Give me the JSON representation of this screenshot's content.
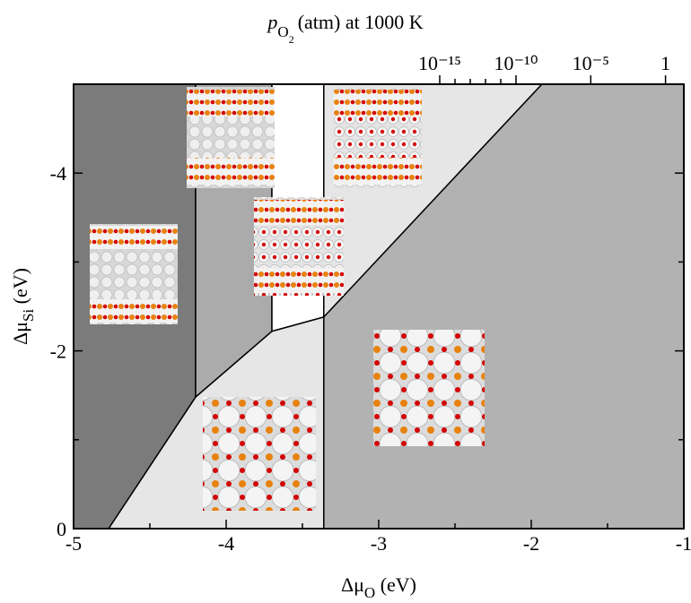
{
  "chart_data": {
    "type": "phase_diagram",
    "top_label": [
      "p",
      "O",
      "2",
      "(atm) at 1000 K"
    ],
    "xlabel": [
      "Δμ",
      "O",
      " (eV)"
    ],
    "ylabel": [
      "Δμ",
      "Si",
      " (eV)"
    ],
    "xlim": [
      -5,
      -1
    ],
    "ylim": [
      0,
      -5
    ],
    "xticks": [
      -5,
      -4,
      -3,
      -2,
      -1
    ],
    "xminorticks": [
      -4.5,
      -3.5,
      -2.5,
      -1.5
    ],
    "yticks": [
      0,
      -2,
      -4
    ],
    "yminorticks": [
      -1,
      -3,
      -5
    ],
    "x2ticks": [
      {
        "value": -2.6,
        "label": "10⁻¹⁵"
      },
      {
        "value": -2.1,
        "label": "10⁻¹⁰"
      },
      {
        "value": -1.61,
        "label": "10⁻⁵"
      },
      {
        "value": -1.12,
        "label": "1"
      }
    ],
    "x2minorticks": [
      -2.5,
      -2.4,
      -2.3,
      -2.2
    ],
    "regions": [
      {
        "color": "#7b7b7b",
        "x": [
          -5,
          -4.77,
          -4.2,
          -4.2,
          -5
        ],
        "y": [
          0,
          0,
          -1.48,
          -5,
          -5
        ]
      },
      {
        "color": "#ababab",
        "x": [
          -4.2,
          -4.2,
          -3.7,
          -3.7
        ],
        "y": [
          -1.48,
          -5,
          -5,
          -2.22
        ]
      },
      {
        "color": "#ffffff",
        "x": [
          -3.7,
          -3.7,
          -3.36,
          -3.36
        ],
        "y": [
          -2.22,
          -5,
          -5,
          -2.38
        ]
      },
      {
        "color": "#e6e6e6",
        "x": [
          -4.77,
          -3.36,
          -3.36,
          -3.7,
          -4.2
        ],
        "y": [
          0,
          0,
          -2.38,
          -2.22,
          -1.48
        ]
      },
      {
        "color": "#e6e6e6",
        "x": [
          -3.36,
          -1.93,
          -3.36
        ],
        "y": [
          -5,
          -5,
          -2.38
        ]
      },
      {
        "color": "#b2b2b2",
        "x": [
          -3.36,
          -1,
          -1,
          -1.93,
          -3.36
        ],
        "y": [
          0,
          0,
          -5,
          -5,
          -2.38
        ]
      }
    ]
  }
}
